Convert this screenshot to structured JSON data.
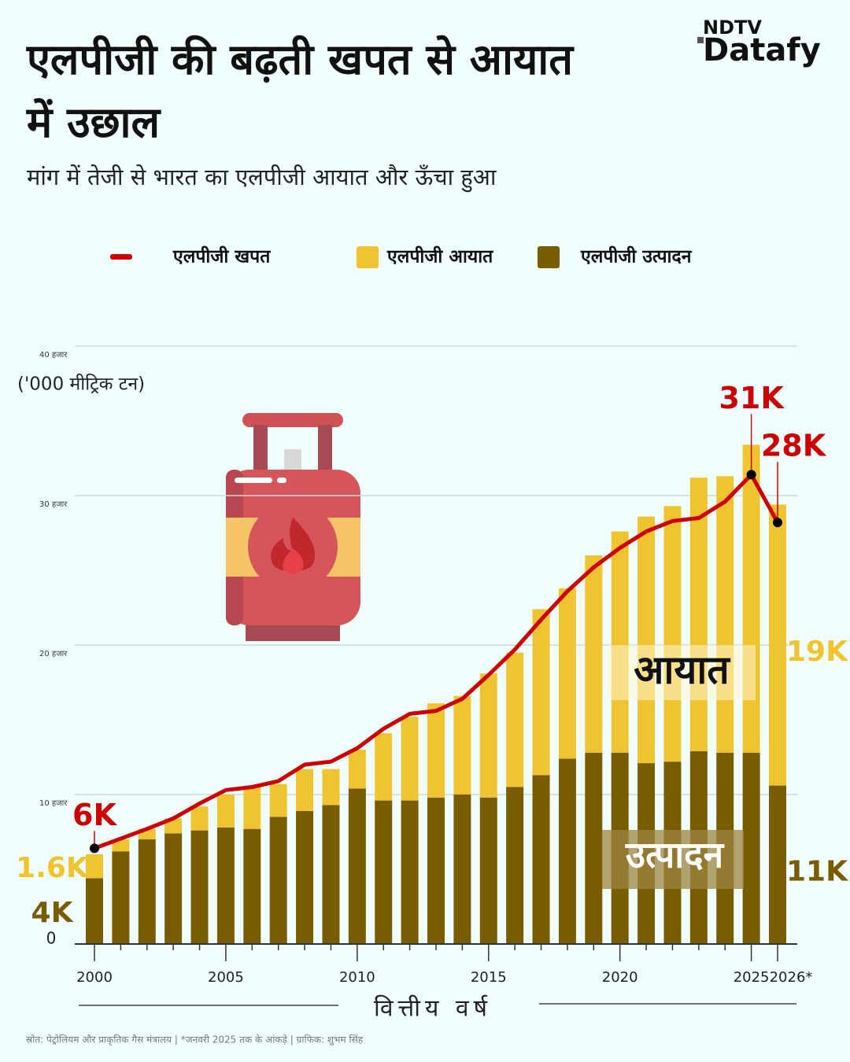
{
  "chart_data": {
    "type": "bar",
    "stacked": true,
    "title": "एलपीजी की बढ़ती खपत से आयात में उछाल",
    "subtitle": "मांग में तेजी से भारत का एलपीजी आयात और ऊँचा हुआ",
    "y_label": "('000 मीट्रिक टन)",
    "x_label": "वित्तीय वर्ष",
    "annotations": [
      "आयात",
      "उत्पादन"
    ],
    "source": "स्रोत: पेट्रोलियम और प्राकृतिक गैस मंत्रालय | *जनवरी 2025 तक के आंकड़े | ग्राफिक: शुभम सिंह",
    "logo": [
      "NDTV",
      "Datafy"
    ],
    "categories": [
      "2000",
      null,
      null,
      null,
      null,
      "2005",
      null,
      null,
      null,
      null,
      "2010",
      null,
      null,
      null,
      null,
      "2015",
      null,
      null,
      null,
      null,
      "2020",
      null,
      null,
      null,
      null,
      "2025",
      "2026*"
    ],
    "series": [
      {
        "name": "एलपीजी खपत",
        "type": "line",
        "color": "#cc0000",
        "values": [
          6400,
          7050,
          7700,
          8400,
          9400,
          10300,
          10500,
          10900,
          12000,
          12200,
          13100,
          14400,
          15400,
          15600,
          16400,
          18000,
          19700,
          21700,
          23600,
          25200,
          26500,
          27600,
          28300,
          28500,
          29600,
          31400,
          28200
        ],
        "value_labels": [
          "6K",
          null,
          null,
          null,
          null,
          null,
          null,
          null,
          null,
          null,
          null,
          null,
          null,
          null,
          null,
          null,
          null,
          null,
          null,
          null,
          null,
          null,
          null,
          null,
          null,
          "31K",
          "28K"
        ]
      },
      {
        "name": "एलपीजी आयात",
        "type": "bar",
        "color": "#f0c330",
        "values": [
          1600,
          800,
          700,
          1000,
          1600,
          2200,
          2800,
          2200,
          2800,
          2400,
          2600,
          4500,
          5600,
          6300,
          6600,
          8300,
          9000,
          11100,
          11400,
          13200,
          14800,
          16500,
          17100,
          18300,
          18500,
          20600,
          18800
        ],
        "value_labels": [
          "1.6K",
          null,
          null,
          null,
          null,
          null,
          null,
          null,
          null,
          null,
          null,
          null,
          null,
          null,
          null,
          null,
          null,
          null,
          null,
          null,
          null,
          null,
          null,
          null,
          null,
          null,
          "19K"
        ]
      },
      {
        "name": "एलपीजी उत्पादन",
        "type": "bar",
        "color": "#7a5c00",
        "values": [
          4400,
          6200,
          7000,
          7400,
          7600,
          7800,
          7700,
          8500,
          8900,
          9300,
          10400,
          9600,
          9600,
          9800,
          10000,
          9800,
          10500,
          11300,
          12400,
          12800,
          12800,
          12100,
          12200,
          12900,
          12800,
          12800,
          10600
        ],
        "value_labels": [
          "4K",
          null,
          null,
          null,
          null,
          null,
          null,
          null,
          null,
          null,
          null,
          null,
          null,
          null,
          null,
          null,
          null,
          null,
          null,
          null,
          null,
          null,
          null,
          null,
          null,
          null,
          "11K"
        ]
      }
    ],
    "ylim": [
      0,
      40000
    ],
    "yticks": [
      0,
      {
        "value": 10000,
        "label": "10 हजार"
      },
      {
        "value": 20000,
        "label": "20 हजार"
      },
      {
        "value": 30000,
        "label": "30 हजार"
      },
      {
        "value": 40000,
        "label": "40 हजार"
      }
    ],
    "grid": true,
    "legend": "top"
  }
}
